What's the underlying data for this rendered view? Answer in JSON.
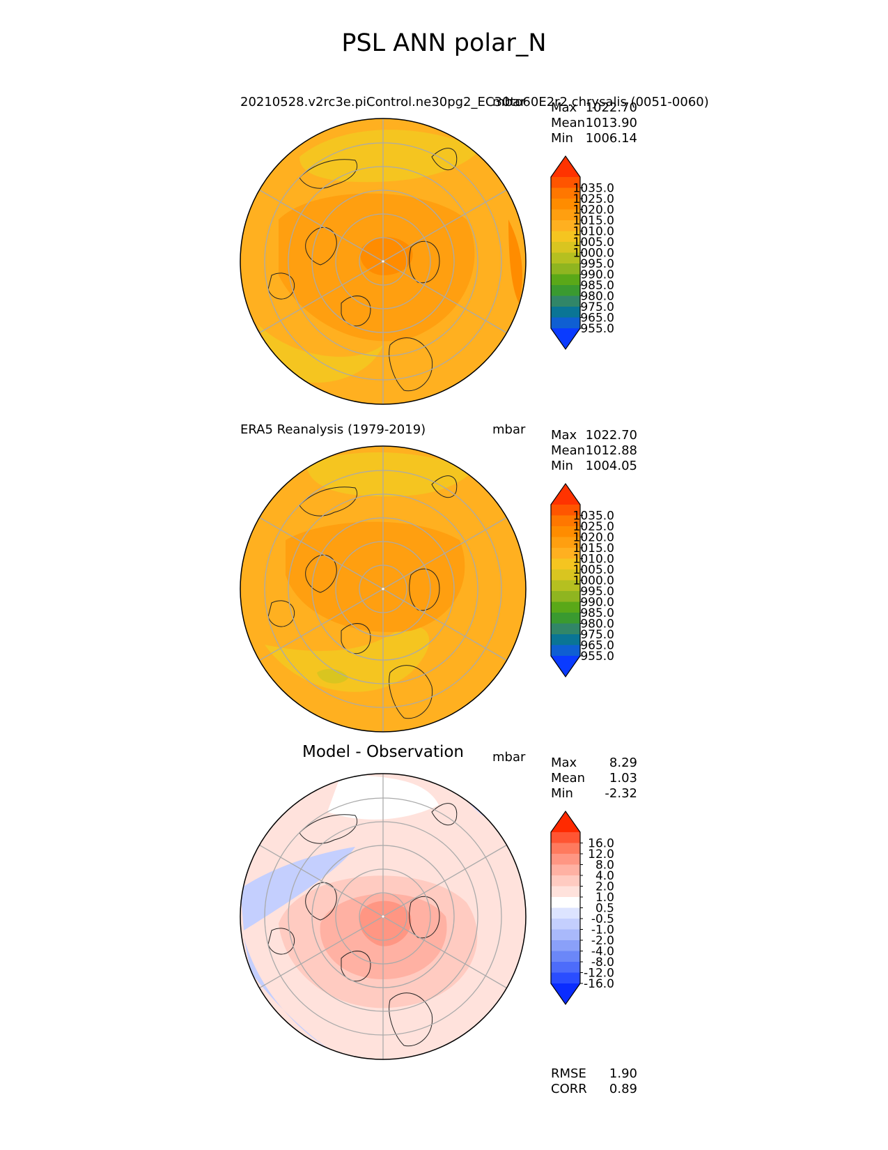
{
  "title": "PSL ANN polar_N",
  "panels": [
    {
      "left_label": "20210528.v2rc3e.piControl.ne30pg2_EC30to60E2r2.chrysalis (0051-0060)",
      "right_label": "mbar",
      "center_label": "",
      "stats": [
        {
          "name": "Max",
          "value": "1022.70"
        },
        {
          "name": "Mean",
          "value": "1013.90"
        },
        {
          "name": "Min",
          "value": "1006.14"
        }
      ],
      "colorbar_key": "abs",
      "field": "model"
    },
    {
      "left_label": "ERA5 Reanalysis (1979-2019)",
      "right_label": "mbar",
      "center_label": "",
      "stats": [
        {
          "name": "Max",
          "value": "1022.70"
        },
        {
          "name": "Mean",
          "value": "1012.88"
        },
        {
          "name": "Min",
          "value": "1004.05"
        }
      ],
      "colorbar_key": "abs",
      "field": "obs"
    },
    {
      "left_label": "",
      "right_label": "mbar",
      "center_label": "Model - Observation",
      "stats": [
        {
          "name": "Max",
          "value": "8.29"
        },
        {
          "name": "Mean",
          "value": "1.03"
        },
        {
          "name": "Min",
          "value": "-2.32"
        }
      ],
      "colorbar_key": "diff",
      "field": "diff"
    }
  ],
  "metrics": [
    {
      "name": "RMSE",
      "value": "1.90"
    },
    {
      "name": "CORR",
      "value": "0.89"
    }
  ],
  "colorbars": {
    "abs": {
      "ticks": [
        "1035.0",
        "1025.0",
        "1020.0",
        "1015.0",
        "1010.0",
        "1005.0",
        "1000.0",
        "995.0",
        "990.0",
        "985.0",
        "980.0",
        "975.0",
        "965.0",
        "955.0"
      ],
      "colors_top_to_bottom": [
        "#ff3300",
        "#ff5500",
        "#ff7700",
        "#ff8c00",
        "#ff9f10",
        "#ffb020",
        "#f5c520",
        "#d9c520",
        "#b5c020",
        "#8fb520",
        "#5aa818",
        "#3a9a30",
        "#318668",
        "#0a7595",
        "#0f5fd2",
        "#0a3bff"
      ]
    },
    "diff": {
      "ticks": [
        "16.0",
        "12.0",
        "8.0",
        "4.0",
        "2.0",
        "1.0",
        "0.5",
        "-0.5",
        "-1.0",
        "-2.0",
        "-4.0",
        "-8.0",
        "-12.0",
        "-16.0"
      ],
      "colors_top_to_bottom": [
        "#ff2a00",
        "#ff5533",
        "#ff7a5e",
        "#ff9683",
        "#ffb1a3",
        "#ffcbc1",
        "#ffe2dc",
        "#ffffff",
        "#dde4ff",
        "#c4cffe",
        "#a9b9fb",
        "#8aa0f9",
        "#6b87f8",
        "#4d6cfa",
        "#2a4dff",
        "#0a2cff"
      ]
    }
  }
}
